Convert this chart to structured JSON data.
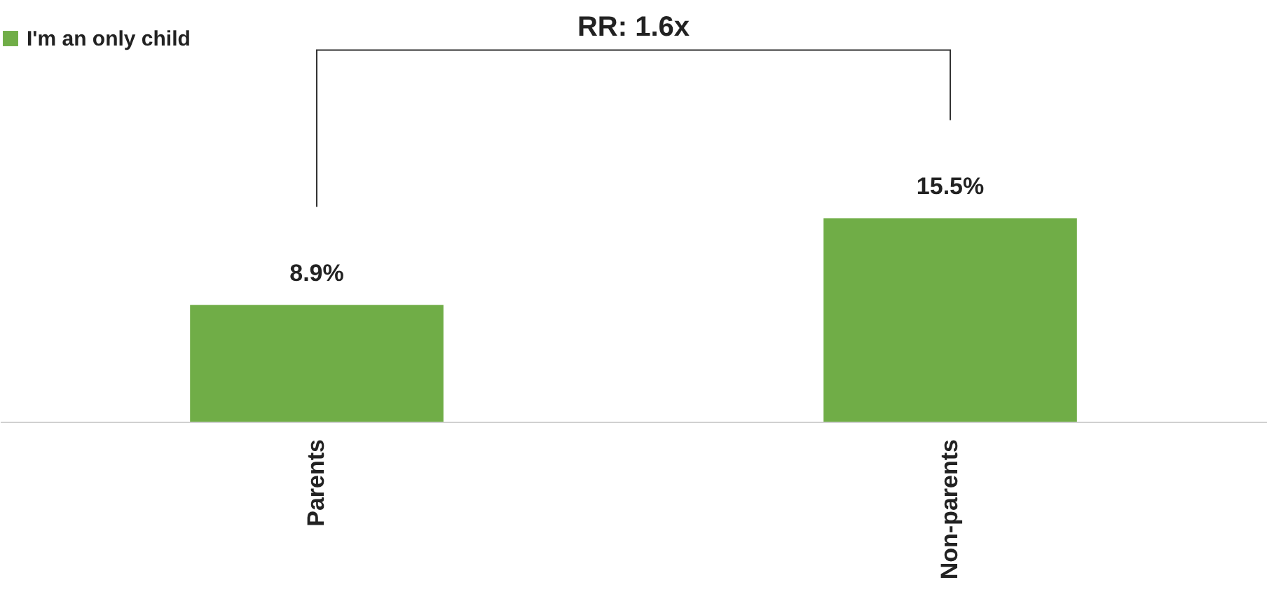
{
  "chart_data": {
    "type": "bar",
    "categories": [
      "Parents",
      "Non-parents"
    ],
    "series": [
      {
        "name": "I'm an only child",
        "color": "#70ad47",
        "values": [
          8.9,
          15.5
        ],
        "value_labels": [
          "8.9%",
          "15.5%"
        ]
      }
    ],
    "legend": "top",
    "annotations": [
      "RR: 1.6x"
    ]
  }
}
